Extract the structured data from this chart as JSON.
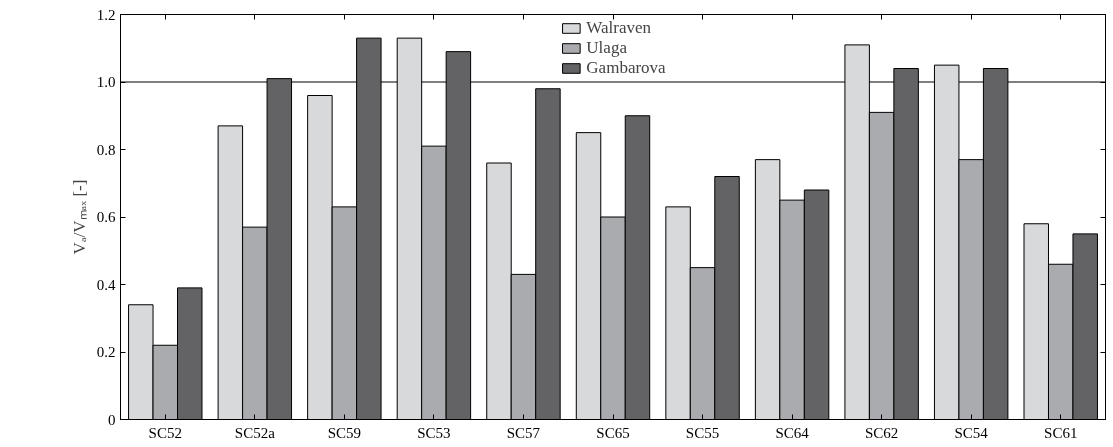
{
  "chart_data": {
    "type": "bar",
    "ylabel": "Vₐ/Vₘₐₓ [-]",
    "categories": [
      "SC52",
      "SC52a",
      "SC59",
      "SC53",
      "SC57",
      "SC65",
      "SC55",
      "SC64",
      "SC62",
      "SC54",
      "SC61"
    ],
    "series": [
      {
        "name": "Walraven",
        "color": "#d8d9db",
        "values": [
          0.34,
          0.87,
          0.96,
          1.13,
          0.76,
          0.85,
          0.63,
          0.77,
          1.11,
          1.05,
          0.58
        ]
      },
      {
        "name": "Ulaga",
        "color": "#aaabaf",
        "values": [
          0.22,
          0.57,
          0.63,
          0.81,
          0.43,
          0.6,
          0.45,
          0.65,
          0.91,
          0.77,
          0.46
        ]
      },
      {
        "name": "Gambarova",
        "color": "#636365",
        "values": [
          0.39,
          1.01,
          1.13,
          1.09,
          0.98,
          0.9,
          0.72,
          0.68,
          1.04,
          1.04,
          0.55
        ]
      }
    ],
    "ylim": [
      0,
      1.2
    ],
    "yticks": [
      0,
      0.2,
      0.4,
      0.6,
      0.8,
      {
        "value": 1.0,
        "label": "1.0"
      },
      1.2
    ],
    "ref_lines": [
      {
        "axis": "y",
        "value": 1.0,
        "color": "#000000",
        "line_style": "solid"
      }
    ],
    "grid": false,
    "legend": "top"
  }
}
